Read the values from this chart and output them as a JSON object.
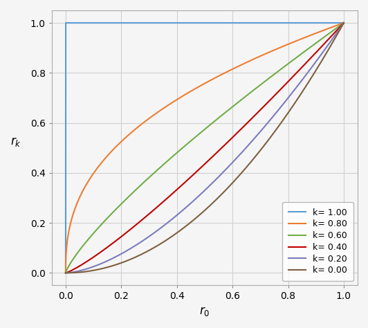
{
  "k_values": [
    1.0,
    0.8,
    0.6,
    0.4,
    0.2,
    0.0
  ],
  "colors": [
    "#5b9bd5",
    "#ed7d31",
    "#70ad47",
    "#c00000",
    "#7b7bbd",
    "#7d6040"
  ],
  "legend_labels": [
    "k= 1.00",
    "k= 0.80",
    "k= 0.60",
    "k= 0.40",
    "k= 0.20",
    "k= 0.00"
  ],
  "xlabel": "$r_0$",
  "ylabel": "$r_k$",
  "xlim": [
    -0.05,
    1.05
  ],
  "ylim": [
    -0.05,
    1.05
  ],
  "xticks": [
    0.0,
    0.2,
    0.4,
    0.6,
    0.8,
    1.0
  ],
  "yticks": [
    0.0,
    0.2,
    0.4,
    0.6,
    0.8,
    1.0
  ],
  "figsize": [
    5.32,
    4.74
  ],
  "dpi": 100,
  "background_color": "#f5f5f5",
  "grid_color": "#d0d0d0",
  "legend_loc": "lower right"
}
